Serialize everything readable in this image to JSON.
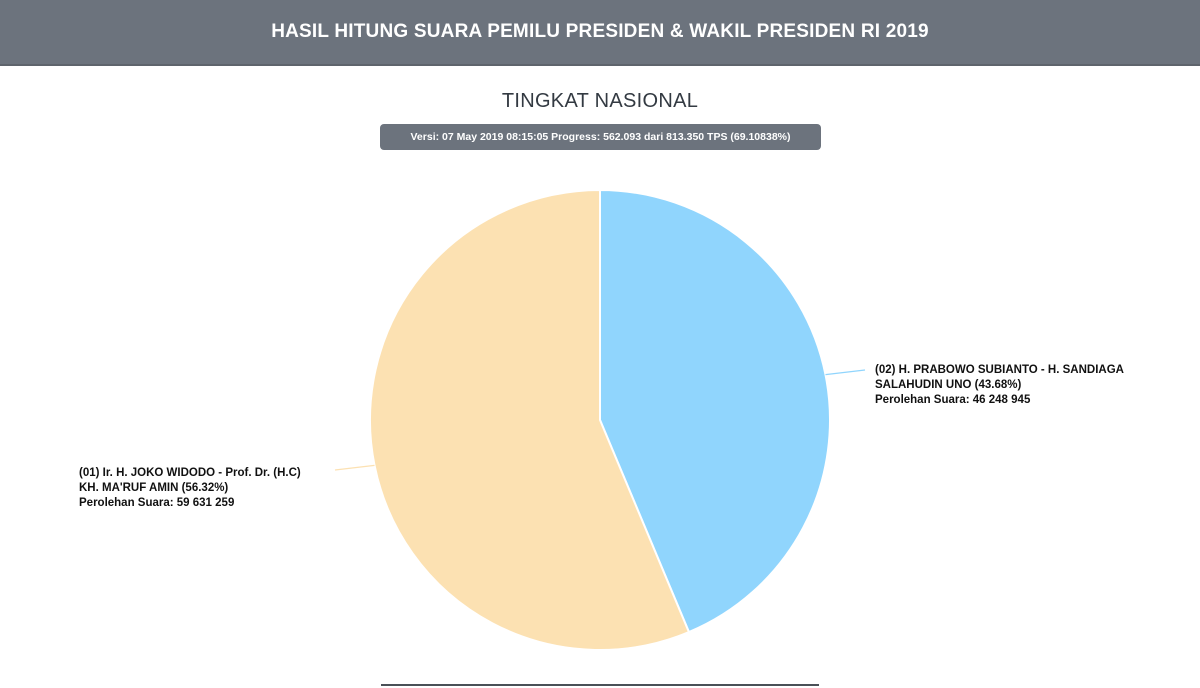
{
  "header": {
    "title": "HASIL HITUNG SUARA PEMILU PRESIDEN & WAKIL PRESIDEN RI 2019"
  },
  "subtitle": "TINGKAT NASIONAL",
  "version_badge": "Versi: 07 May 2019 08:15:05 Progress: 562.093 dari 813.350 TPS (69.10838%)",
  "chart_data": {
    "type": "pie",
    "slices": [
      {
        "id": "02",
        "label_line1": "(02) H. PRABOWO SUBIANTO - H. SANDIAGA",
        "label_line2": "SALAHUDIN UNO (43.68%)",
        "votes_text": "Perolehan Suara: 46 248 945",
        "percent": 43.68,
        "votes": 46248945,
        "color": "#90d5fd"
      },
      {
        "id": "01",
        "label_line1": "(01) Ir. H. JOKO WIDODO - Prof. Dr. (H.C)",
        "label_line2": "KH. MA'RUF AMIN (56.32%)",
        "votes_text": "Perolehan Suara: 59 631 259",
        "percent": 56.32,
        "votes": 59631259,
        "color": "#fce1b2"
      }
    ]
  }
}
